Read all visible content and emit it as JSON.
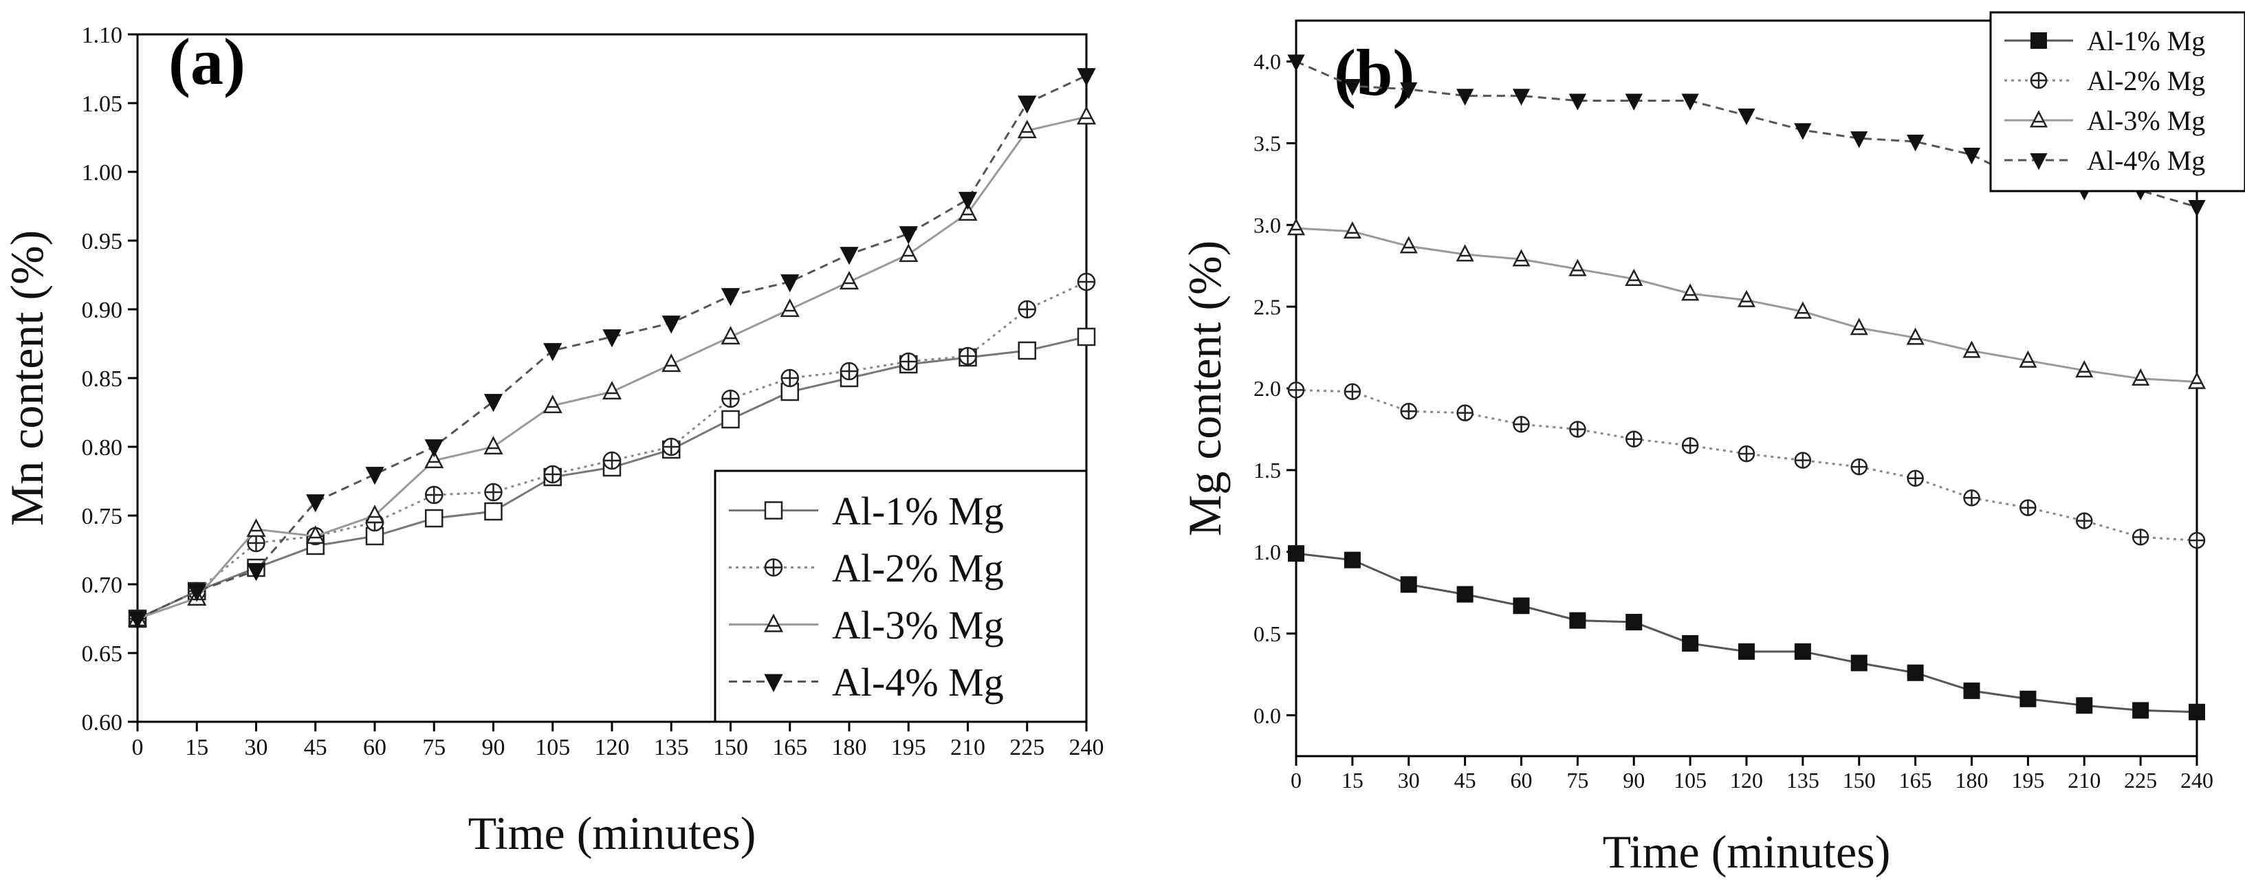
{
  "chart_data": [
    {
      "type": "line",
      "panel_label": "(a)",
      "xlabel": "Time (minutes)",
      "ylabel": "Mn content (%)",
      "x": [
        0,
        15,
        30,
        45,
        60,
        75,
        90,
        105,
        120,
        135,
        150,
        165,
        180,
        195,
        210,
        225,
        240
      ],
      "xticks": [
        "0",
        "15",
        "30",
        "45",
        "60",
        "75",
        "90",
        "105",
        "120",
        "135",
        "150",
        "165",
        "180",
        "195",
        "210",
        "225",
        "240"
      ],
      "xlim": [
        0,
        240
      ],
      "ylim": [
        0.6,
        1.1
      ],
      "yticks": [
        "0.60",
        "0.65",
        "0.70",
        "0.75",
        "0.80",
        "0.85",
        "0.90",
        "0.95",
        "1.00",
        "1.05",
        "1.10"
      ],
      "legend_position": "lower-right",
      "series": [
        {
          "name": "Al-1% Mg",
          "marker": "open-square",
          "dash": "solid",
          "color": "#777777",
          "values": [
            0.675,
            0.695,
            0.712,
            0.728,
            0.735,
            0.748,
            0.753,
            0.778,
            0.785,
            0.798,
            0.82,
            0.84,
            0.85,
            0.86,
            0.865,
            0.87,
            0.88
          ]
        },
        {
          "name": "Al-2% Mg",
          "marker": "open-circle-cross",
          "dash": "dotted",
          "color": "#888888",
          "values": [
            0.675,
            0.695,
            0.73,
            0.735,
            0.745,
            0.765,
            0.767,
            0.78,
            0.79,
            0.8,
            0.835,
            0.85,
            0.855,
            0.862,
            0.866,
            0.9,
            0.92
          ]
        },
        {
          "name": "Al-3% Mg",
          "marker": "open-triangle-up",
          "dash": "solid",
          "color": "#999999",
          "values": [
            0.675,
            0.69,
            0.74,
            0.735,
            0.75,
            0.79,
            0.8,
            0.83,
            0.84,
            0.86,
            0.88,
            0.9,
            0.92,
            0.94,
            0.97,
            1.03,
            1.04
          ]
        },
        {
          "name": "Al-4% Mg",
          "marker": "filled-triangle-down",
          "dash": "dashed",
          "color": "#555555",
          "values": [
            0.675,
            0.695,
            0.71,
            0.76,
            0.78,
            0.8,
            0.833,
            0.87,
            0.88,
            0.89,
            0.91,
            0.92,
            0.94,
            0.955,
            0.98,
            1.05,
            1.07
          ]
        }
      ]
    },
    {
      "type": "line",
      "panel_label": "(b)",
      "xlabel": "Time (minutes)",
      "ylabel": "Mg content (%)",
      "x": [
        0,
        15,
        30,
        45,
        60,
        75,
        90,
        105,
        120,
        135,
        150,
        165,
        180,
        195,
        210,
        225,
        240
      ],
      "xticks": [
        "0",
        "15",
        "30",
        "45",
        "60",
        "75",
        "90",
        "105",
        "120",
        "135",
        "150",
        "165",
        "180",
        "195",
        "210",
        "225",
        "240"
      ],
      "xlim": [
        0,
        240
      ],
      "ylim": [
        -0.25,
        4.25
      ],
      "yticks": [
        "0.0",
        "0.5",
        "1.0",
        "1.5",
        "2.0",
        "2.5",
        "3.0",
        "3.5",
        "4.0"
      ],
      "legend_position": "top-right",
      "series": [
        {
          "name": "Al-1% Mg",
          "marker": "filled-square",
          "dash": "solid",
          "color": "#555555",
          "values": [
            0.99,
            0.95,
            0.8,
            0.74,
            0.67,
            0.58,
            0.57,
            0.44,
            0.39,
            0.39,
            0.32,
            0.26,
            0.15,
            0.1,
            0.06,
            0.03,
            0.02
          ]
        },
        {
          "name": "Al-2% Mg",
          "marker": "open-circle-cross",
          "dash": "dotted",
          "color": "#888888",
          "values": [
            1.99,
            1.98,
            1.86,
            1.85,
            1.78,
            1.75,
            1.69,
            1.65,
            1.6,
            1.56,
            1.52,
            1.45,
            1.33,
            1.27,
            1.19,
            1.09,
            1.07
          ]
        },
        {
          "name": "Al-3% Mg",
          "marker": "open-triangle-up",
          "dash": "solid",
          "color": "#999999",
          "values": [
            2.98,
            2.96,
            2.87,
            2.82,
            2.79,
            2.73,
            2.67,
            2.58,
            2.54,
            2.47,
            2.37,
            2.31,
            2.23,
            2.17,
            2.11,
            2.06,
            2.04
          ]
        },
        {
          "name": "Al-4% Mg",
          "marker": "filled-triangle-down",
          "dash": "dashed",
          "color": "#555555",
          "values": [
            4.0,
            3.85,
            3.83,
            3.79,
            3.79,
            3.76,
            3.76,
            3.76,
            3.67,
            3.58,
            3.53,
            3.51,
            3.43,
            3.26,
            3.21,
            3.21,
            3.11
          ]
        }
      ]
    }
  ]
}
